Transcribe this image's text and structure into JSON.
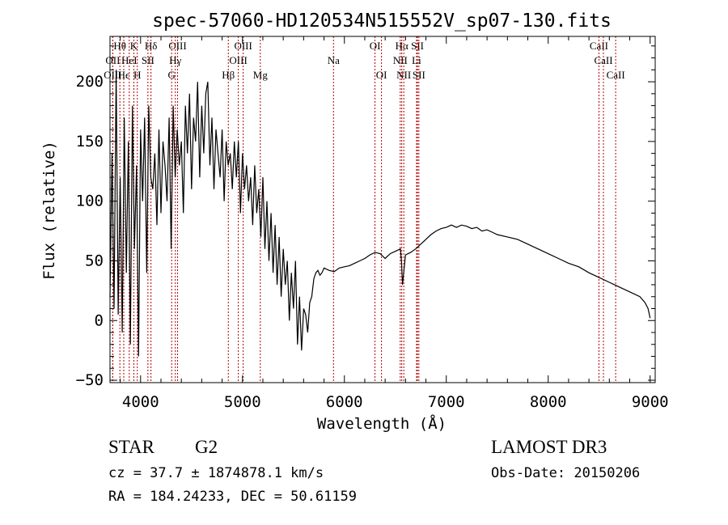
{
  "chart_data": {
    "type": "line",
    "title": "spec-57060-HD120534N515552V_sp07-130.fits",
    "xlabel": "Wavelength (Å)",
    "ylabel": "Flux (relative)",
    "xlim": [
      3700,
      9050
    ],
    "ylim": [
      -52,
      238
    ],
    "xticks": [
      4000,
      5000,
      6000,
      7000,
      8000,
      9000
    ],
    "xtick_labels": [
      "4000",
      "5000",
      "6000",
      "7000",
      "8000",
      "9000"
    ],
    "yticks": [
      -50,
      0,
      50,
      100,
      150,
      200
    ],
    "ytick_labels": [
      "−50",
      "0",
      "50",
      "100",
      "150",
      "200"
    ],
    "series": [
      {
        "name": "flux",
        "x": [
          3700,
          3720,
          3740,
          3760,
          3780,
          3800,
          3820,
          3840,
          3860,
          3880,
          3900,
          3920,
          3940,
          3960,
          3980,
          4000,
          4020,
          4040,
          4060,
          4080,
          4100,
          4120,
          4140,
          4160,
          4180,
          4200,
          4220,
          4240,
          4260,
          4280,
          4300,
          4320,
          4340,
          4360,
          4380,
          4400,
          4420,
          4440,
          4460,
          4480,
          4500,
          4520,
          4540,
          4560,
          4580,
          4600,
          4620,
          4640,
          4660,
          4680,
          4700,
          4720,
          4740,
          4760,
          4780,
          4800,
          4820,
          4840,
          4860,
          4880,
          4900,
          4920,
          4940,
          4960,
          4980,
          5000,
          5020,
          5040,
          5060,
          5080,
          5100,
          5120,
          5140,
          5160,
          5180,
          5200,
          5220,
          5240,
          5260,
          5280,
          5300,
          5320,
          5340,
          5360,
          5380,
          5400,
          5420,
          5440,
          5460,
          5480,
          5500,
          5520,
          5540,
          5560,
          5580,
          5600,
          5620,
          5640,
          5660,
          5680,
          5700,
          5720,
          5740,
          5760,
          5780,
          5800,
          5850,
          5900,
          5950,
          6000,
          6050,
          6100,
          6150,
          6200,
          6250,
          6300,
          6350,
          6400,
          6450,
          6500,
          6550,
          6560,
          6570,
          6600,
          6650,
          6700,
          6750,
          6800,
          6850,
          6900,
          6950,
          7000,
          7050,
          7100,
          7150,
          7200,
          7250,
          7300,
          7350,
          7400,
          7450,
          7500,
          7600,
          7700,
          7800,
          7900,
          8000,
          8100,
          8200,
          8300,
          8400,
          8500,
          8600,
          8700,
          8800,
          8900,
          8950,
          8980,
          9000
        ],
        "y": [
          20,
          140,
          10,
          210,
          5,
          120,
          -10,
          170,
          40,
          150,
          -20,
          180,
          60,
          130,
          -30,
          160,
          100,
          170,
          40,
          180,
          120,
          110,
          140,
          80,
          160,
          90,
          150,
          130,
          100,
          170,
          60,
          180,
          120,
          160,
          130,
          150,
          90,
          180,
          140,
          190,
          110,
          170,
          150,
          200,
          120,
          180,
          140,
          190,
          200,
          130,
          170,
          110,
          160,
          140,
          120,
          160,
          100,
          150,
          130,
          140,
          110,
          150,
          120,
          150,
          90,
          140,
          110,
          130,
          100,
          120,
          80,
          130,
          90,
          110,
          70,
          120,
          60,
          100,
          50,
          90,
          40,
          80,
          30,
          70,
          20,
          60,
          30,
          50,
          0,
          40,
          10,
          50,
          -20,
          20,
          -25,
          10,
          5,
          -10,
          15,
          20,
          35,
          40,
          42,
          38,
          40,
          44,
          42,
          41,
          44,
          45,
          46,
          48,
          50,
          52,
          55,
          57,
          56,
          52,
          56,
          58,
          60,
          50,
          30,
          55,
          57,
          60,
          64,
          68,
          72,
          75,
          77,
          78,
          80,
          78,
          80,
          79,
          77,
          78,
          75,
          76,
          74,
          72,
          70,
          68,
          64,
          60,
          56,
          52,
          48,
          45,
          40,
          36,
          32,
          28,
          24,
          20,
          15,
          10,
          2
        ]
      }
    ],
    "line_markers": [
      {
        "label": "Hθ",
        "x": 3797,
        "row": 0
      },
      {
        "label": "K",
        "x": 3934,
        "row": 0
      },
      {
        "label": "Hδ",
        "x": 4102,
        "row": 0
      },
      {
        "label": "OIII",
        "x": 4363,
        "row": 0
      },
      {
        "label": "OIII",
        "x": 5007,
        "row": 0
      },
      {
        "label": "OI",
        "x": 6300,
        "row": 0
      },
      {
        "label": "Hα",
        "x": 6563,
        "row": 0
      },
      {
        "label": "SII",
        "x": 6717,
        "row": 0
      },
      {
        "label": "CaII",
        "x": 8498,
        "row": 0
      },
      {
        "label": "OII",
        "x": 3727,
        "row": 1
      },
      {
        "label": "HeI",
        "x": 3889,
        "row": 1
      },
      {
        "label": "SII",
        "x": 4072,
        "row": 1
      },
      {
        "label": "Hγ",
        "x": 4341,
        "row": 1
      },
      {
        "label": "OIII",
        "x": 4959,
        "row": 1
      },
      {
        "label": "Na",
        "x": 5893,
        "row": 1
      },
      {
        "label": "NII",
        "x": 6548,
        "row": 1
      },
      {
        "label": "Li",
        "x": 6708,
        "row": 1
      },
      {
        "label": "CaII",
        "x": 8542,
        "row": 1
      },
      {
        "label": "OIII",
        "x": 3727,
        "row": 2
      },
      {
        "label": "Hϵ",
        "x": 3835,
        "row": 2
      },
      {
        "label": "H",
        "x": 3968,
        "row": 2
      },
      {
        "label": "G",
        "x": 4305,
        "row": 2
      },
      {
        "label": "Hβ",
        "x": 4861,
        "row": 2
      },
      {
        "label": "Mg",
        "x": 5175,
        "row": 2
      },
      {
        "label": "OI",
        "x": 6364,
        "row": 2
      },
      {
        "label": "NII",
        "x": 6583,
        "row": 2
      },
      {
        "label": "SII",
        "x": 6731,
        "row": 2
      },
      {
        "label": "CaII",
        "x": 8662,
        "row": 2
      }
    ]
  },
  "info": {
    "object_class": "STAR",
    "subclass": "G2",
    "cz": "cz = 37.7 ± 1874878.1 km/s",
    "radec": "RA = 184.24233, DEC =  50.61159",
    "survey": "LAMOST DR3",
    "obs_date": "Obs-Date: 20150206"
  }
}
